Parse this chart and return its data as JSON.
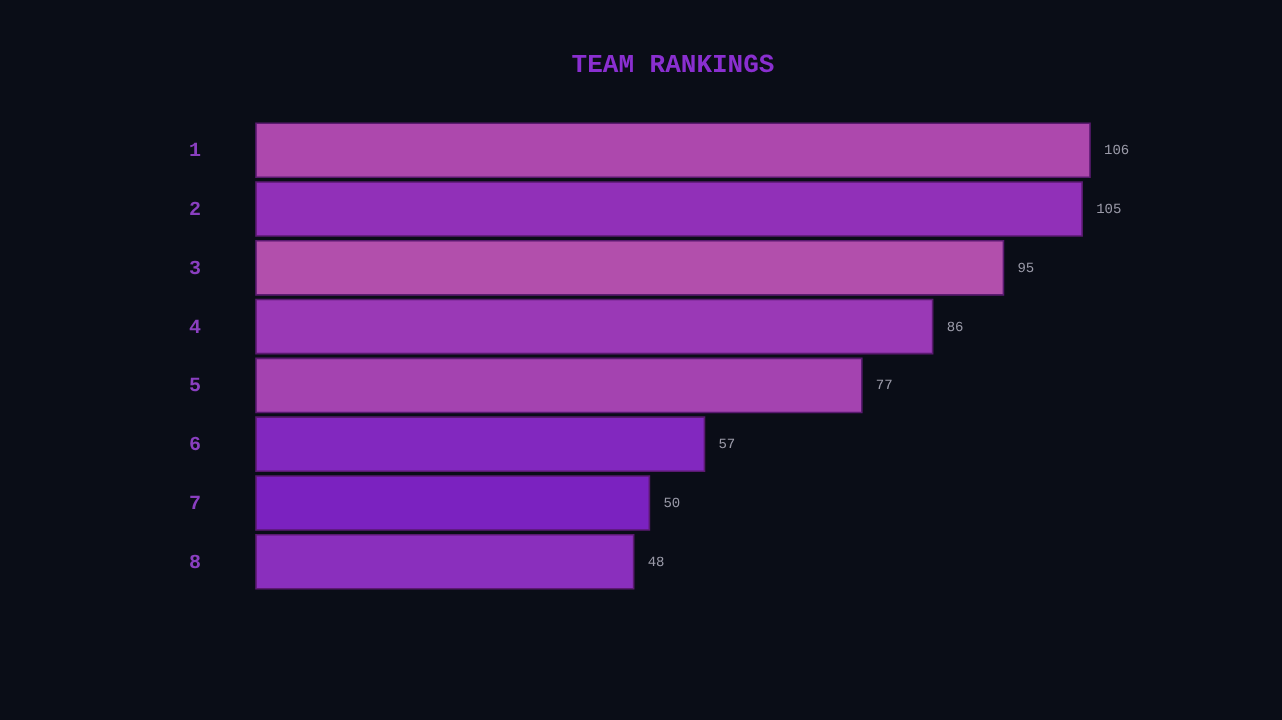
{
  "chart_data": {
    "type": "bar",
    "orientation": "horizontal",
    "title": "TEAM RANKINGS",
    "categories": [
      "1",
      "2",
      "3",
      "4",
      "5",
      "6",
      "7",
      "8"
    ],
    "values": [
      106,
      105,
      95,
      86,
      77,
      57,
      50,
      48
    ],
    "colors": [
      "#ad48ad",
      "#9130b8",
      "#b24fac",
      "#9a39b6",
      "#a443b0",
      "#8228bf",
      "#7b22c0",
      "#8a2fbd"
    ],
    "data_labels": true,
    "grid": false
  }
}
